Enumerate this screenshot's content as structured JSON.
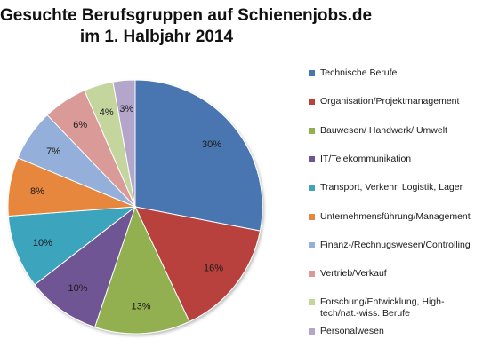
{
  "chart_data": {
    "type": "pie",
    "title_lines": [
      "Gesuchte Berufsgruppen auf Schienenjobs.de",
      "im 1. Halbjahr 2014"
    ],
    "legend_position": "right",
    "slices": [
      {
        "name": "Technische Berufe",
        "value": 30,
        "label": "30%",
        "color": "#4a76b0"
      },
      {
        "name": "Organisation/Projektmanagement",
        "value": 16,
        "label": "16%",
        "color": "#b8413e"
      },
      {
        "name": "Bauwesen/ Handwerk/ Umwelt",
        "value": 13,
        "label": "13%",
        "color": "#92b04f"
      },
      {
        "name": "IT/Telekommunikation",
        "value": 10,
        "label": "10%",
        "color": "#6f5594"
      },
      {
        "name": "Transport, Verkehr, Logistik, Lager",
        "value": 10,
        "label": "10%",
        "color": "#3ea4be"
      },
      {
        "name": "Unternehmensführung/Management",
        "value": 8,
        "label": "8%",
        "color": "#e6873d"
      },
      {
        "name": "Finanz-/Rechnugswesen/Controlling",
        "value": 7,
        "label": "7%",
        "color": "#94afd9"
      },
      {
        "name": "Vertrieb/Verkauf",
        "value": 6,
        "label": "6%",
        "color": "#da9a98"
      },
      {
        "name": "Forschung/Entwicklung, High-tech/nat.-wiss. Berufe",
        "value": 4,
        "label": "4%",
        "color": "#c4d59e",
        "name_lines": [
          "Forschung/Entwicklung, High-",
          "tech/nat.-wiss. Berufe"
        ]
      },
      {
        "name": "Personalwesen",
        "value": 3,
        "label": "3%",
        "color": "#b4a6cb"
      }
    ]
  }
}
